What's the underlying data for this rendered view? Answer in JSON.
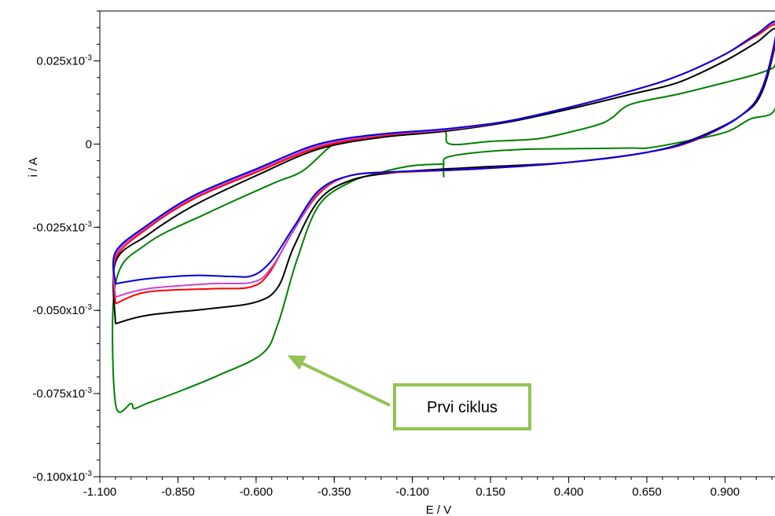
{
  "chart_data": {
    "type": "line",
    "xlabel": "E / V",
    "ylabel": "i / A",
    "xlim": [
      -1.1,
      1.07
    ],
    "ylim": [
      -0.1,
      0.04
    ],
    "y_unit_display": "x10",
    "y_exponent": "-3",
    "x_ticks": [
      {
        "value": -1.1,
        "label": "-1.100"
      },
      {
        "value": -0.85,
        "label": "-0.850"
      },
      {
        "value": -0.6,
        "label": "-0.600"
      },
      {
        "value": -0.35,
        "label": "-0.350"
      },
      {
        "value": -0.1,
        "label": "-0.100"
      },
      {
        "value": 0.15,
        "label": "0.150"
      },
      {
        "value": 0.4,
        "label": "0.400"
      },
      {
        "value": 0.65,
        "label": "0.650"
      },
      {
        "value": 0.9,
        "label": "0.900"
      }
    ],
    "y_ticks": [
      {
        "value": 0.025,
        "label": "0.025",
        "exp": true
      },
      {
        "value": 0,
        "label": "0",
        "exp": false
      },
      {
        "value": -0.025,
        "label": "-0.025",
        "exp": true
      },
      {
        "value": -0.05,
        "label": "-0.050",
        "exp": true
      },
      {
        "value": -0.075,
        "label": "-0.075",
        "exp": true
      },
      {
        "value": -0.1,
        "label": "-0.100",
        "exp": true
      }
    ],
    "series": [
      {
        "color": "#008000",
        "points": [
          [
            0.0,
            -0.01
          ],
          [
            0.0,
            -0.006
          ],
          [
            0.01,
            -0.004
          ],
          [
            0.1,
            -0.0026
          ],
          [
            0.25,
            -0.0016
          ],
          [
            0.4,
            -0.0014
          ],
          [
            0.6,
            -0.0012
          ],
          [
            0.65,
            -0.0012
          ],
          [
            0.75,
            0.0004
          ],
          [
            0.9,
            0.0035
          ],
          [
            0.98,
            0.0075
          ],
          [
            1.06,
            0.0105
          ],
          [
            1.065,
            0.025
          ],
          [
            1.055,
            0.023
          ],
          [
            1.0,
            0.021
          ],
          [
            0.9,
            0.0185
          ],
          [
            0.75,
            0.015
          ],
          [
            0.6,
            0.012
          ],
          [
            0.54,
            0.008
          ],
          [
            0.5,
            0.006
          ],
          [
            0.4,
            0.0035
          ],
          [
            0.3,
            0.0016
          ],
          [
            0.15,
            0.0008
          ],
          [
            0.02,
            0.0
          ],
          [
            0.0,
            0.004
          ],
          [
            -0.1,
            0.0035
          ],
          [
            -0.25,
            0.0025
          ],
          [
            -0.35,
            0.0
          ],
          [
            -0.45,
            -0.008
          ],
          [
            -0.55,
            -0.012
          ],
          [
            -0.75,
            -0.0205
          ],
          [
            -0.95,
            -0.03
          ],
          [
            -1.05,
            -0.042
          ],
          [
            -1.05,
            -0.078
          ],
          [
            -1.0,
            -0.078
          ],
          [
            -0.99,
            -0.0795
          ],
          [
            -0.95,
            -0.078
          ],
          [
            -0.85,
            -0.0745
          ],
          [
            -0.72,
            -0.0695
          ],
          [
            -0.58,
            -0.063
          ],
          [
            -0.53,
            -0.054
          ],
          [
            -0.47,
            -0.035
          ],
          [
            -0.4,
            -0.0185
          ],
          [
            -0.3,
            -0.0115
          ],
          [
            -0.2,
            -0.0085
          ],
          [
            -0.1,
            -0.0065
          ],
          [
            0.0,
            -0.006
          ]
        ]
      },
      {
        "color": "#000000",
        "points": [
          [
            -1.05,
            -0.054
          ],
          [
            -0.95,
            -0.0515
          ],
          [
            -0.75,
            -0.0495
          ],
          [
            -0.6,
            -0.0475
          ],
          [
            -0.53,
            -0.043
          ],
          [
            -0.48,
            -0.031
          ],
          [
            -0.4,
            -0.017
          ],
          [
            -0.3,
            -0.011
          ],
          [
            -0.15,
            -0.0085
          ],
          [
            0.1,
            -0.007
          ],
          [
            0.4,
            -0.0055
          ],
          [
            0.65,
            -0.0025
          ],
          [
            0.8,
            0.0015
          ],
          [
            0.95,
            0.0085
          ],
          [
            1.02,
            0.016
          ],
          [
            1.065,
            0.034
          ],
          [
            1.0,
            0.0305
          ],
          [
            0.9,
            0.025
          ],
          [
            0.75,
            0.0185
          ],
          [
            0.6,
            0.015
          ],
          [
            0.4,
            0.0105
          ],
          [
            0.2,
            0.0065
          ],
          [
            0.0,
            0.0038
          ],
          [
            -0.2,
            0.002
          ],
          [
            -0.4,
            -0.0015
          ],
          [
            -0.6,
            -0.0095
          ],
          [
            -0.8,
            -0.0185
          ],
          [
            -0.95,
            -0.0275
          ],
          [
            -1.05,
            -0.0355
          ],
          [
            -1.05,
            -0.054
          ]
        ]
      },
      {
        "color": "#ff0000",
        "points": [
          [
            -1.05,
            -0.048
          ],
          [
            -0.95,
            -0.0445
          ],
          [
            -0.75,
            -0.0435
          ],
          [
            -0.62,
            -0.043
          ],
          [
            -0.56,
            -0.039
          ],
          [
            -0.49,
            -0.0275
          ],
          [
            -0.4,
            -0.015
          ],
          [
            -0.3,
            -0.0095
          ],
          [
            -0.15,
            -0.0085
          ],
          [
            0.1,
            -0.0075
          ],
          [
            0.4,
            -0.0055
          ],
          [
            0.65,
            -0.0025
          ],
          [
            0.8,
            0.001
          ],
          [
            0.95,
            0.0085
          ],
          [
            1.02,
            0.017
          ],
          [
            1.065,
            0.035
          ],
          [
            1.0,
            0.0325
          ],
          [
            0.9,
            0.027
          ],
          [
            0.75,
            0.0205
          ],
          [
            0.6,
            0.016
          ],
          [
            0.4,
            0.011
          ],
          [
            0.2,
            0.0068
          ],
          [
            0.0,
            0.0042
          ],
          [
            -0.2,
            0.0025
          ],
          [
            -0.4,
            -0.001
          ],
          [
            -0.6,
            -0.0085
          ],
          [
            -0.8,
            -0.0165
          ],
          [
            -0.95,
            -0.0255
          ],
          [
            -1.05,
            -0.0345
          ],
          [
            -1.05,
            -0.048
          ]
        ]
      },
      {
        "color": "#cc44cc",
        "points": [
          [
            -1.05,
            -0.046
          ],
          [
            -0.95,
            -0.0435
          ],
          [
            -0.75,
            -0.042
          ],
          [
            -0.61,
            -0.0415
          ],
          [
            -0.55,
            -0.037
          ],
          [
            -0.48,
            -0.026
          ],
          [
            -0.4,
            -0.0145
          ],
          [
            -0.3,
            -0.0095
          ],
          [
            -0.15,
            -0.0083
          ],
          [
            0.1,
            -0.0075
          ],
          [
            0.4,
            -0.0055
          ],
          [
            0.65,
            -0.0025
          ],
          [
            0.8,
            0.0012
          ],
          [
            0.95,
            0.0085
          ],
          [
            1.02,
            0.017
          ],
          [
            1.065,
            0.0355
          ],
          [
            1.0,
            0.033
          ],
          [
            0.9,
            0.027
          ],
          [
            0.75,
            0.0205
          ],
          [
            0.6,
            0.016
          ],
          [
            0.4,
            0.011
          ],
          [
            0.2,
            0.0068
          ],
          [
            0.0,
            0.0042
          ],
          [
            -0.2,
            0.0028
          ],
          [
            -0.4,
            -0.0005
          ],
          [
            -0.6,
            -0.008
          ],
          [
            -0.8,
            -0.016
          ],
          [
            -0.95,
            -0.025
          ],
          [
            -1.05,
            -0.0335
          ],
          [
            -1.05,
            -0.046
          ]
        ]
      },
      {
        "color": "#0000dd",
        "points": [
          [
            -1.05,
            -0.042
          ],
          [
            -0.95,
            -0.0405
          ],
          [
            -0.8,
            -0.0395
          ],
          [
            -0.68,
            -0.0398
          ],
          [
            -0.61,
            -0.0395
          ],
          [
            -0.55,
            -0.035
          ],
          [
            -0.48,
            -0.025
          ],
          [
            -0.4,
            -0.014
          ],
          [
            -0.3,
            -0.0095
          ],
          [
            -0.15,
            -0.0083
          ],
          [
            0.1,
            -0.0075
          ],
          [
            0.4,
            -0.0055
          ],
          [
            0.65,
            -0.0025
          ],
          [
            0.8,
            0.0012
          ],
          [
            0.95,
            0.0085
          ],
          [
            1.02,
            0.017
          ],
          [
            1.065,
            0.036
          ],
          [
            1.0,
            0.033
          ],
          [
            0.9,
            0.027
          ],
          [
            0.75,
            0.0205
          ],
          [
            0.6,
            0.016
          ],
          [
            0.4,
            0.011
          ],
          [
            0.2,
            0.0068
          ],
          [
            0.0,
            0.0045
          ],
          [
            -0.2,
            0.003
          ],
          [
            -0.4,
            0.0
          ],
          [
            -0.6,
            -0.0075
          ],
          [
            -0.8,
            -0.0155
          ],
          [
            -0.95,
            -0.0245
          ],
          [
            -1.05,
            -0.0325
          ],
          [
            -1.05,
            -0.042
          ]
        ]
      }
    ],
    "annotations": [
      {
        "text": "Prvi ciklus",
        "box_color": "#92c353",
        "arrow_to": [
          -0.5,
          -0.0635
        ]
      }
    ]
  }
}
